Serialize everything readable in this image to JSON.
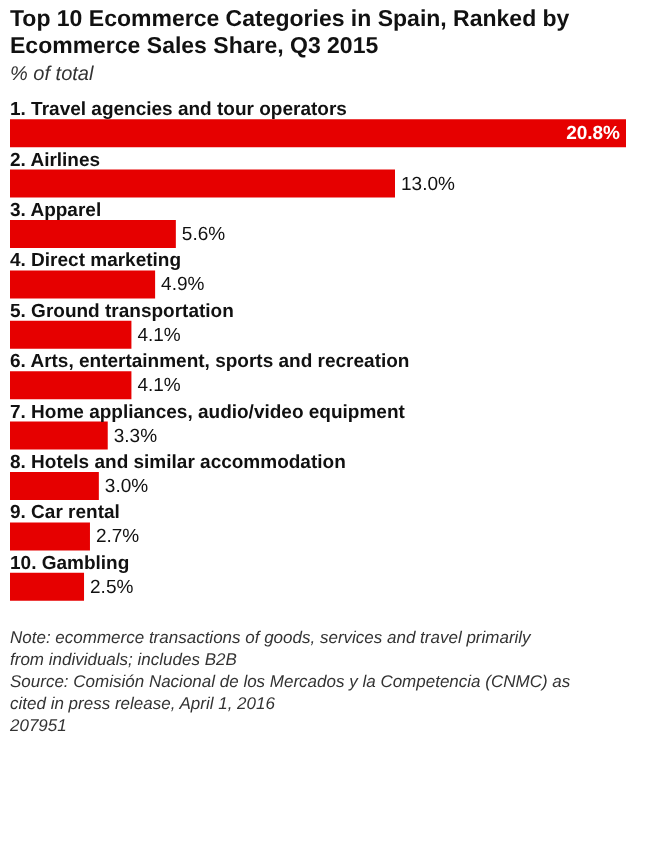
{
  "chart_data": {
    "type": "bar",
    "orientation": "horizontal",
    "title": "Top 10 Ecommerce Categories in Spain, Ranked by Ecommerce Sales Share, Q3 2015",
    "subtitle": "% of total",
    "categories": [
      "1. Travel agencies and tour operators",
      "2. Airlines",
      "3. Apparel",
      "4. Direct marketing",
      "5. Ground transportation",
      "6. Arts, entertainment, sports and recreation",
      "7. Home appliances, audio/video equipment",
      "8. Hotels and similar accommodation",
      "9. Car rental",
      "10. Gambling"
    ],
    "values": [
      20.8,
      13.0,
      5.6,
      4.9,
      4.1,
      4.1,
      3.3,
      3.0,
      2.7,
      2.5
    ],
    "value_labels": [
      "20.8%",
      "13.0%",
      "5.6%",
      "4.9%",
      "4.1%",
      "4.1%",
      "3.3%",
      "3.0%",
      "2.7%",
      "2.5%"
    ],
    "color": "#e60000",
    "tick_labels": false,
    "annotations": [
      "Note: ecommerce transactions of goods, services and travel primarily from individuals; includes B2B",
      "Source: Comisión Nacional de los Mercados y la Competencia (CNMC) as cited in press release, April 1, 2016",
      "207951"
    ]
  }
}
